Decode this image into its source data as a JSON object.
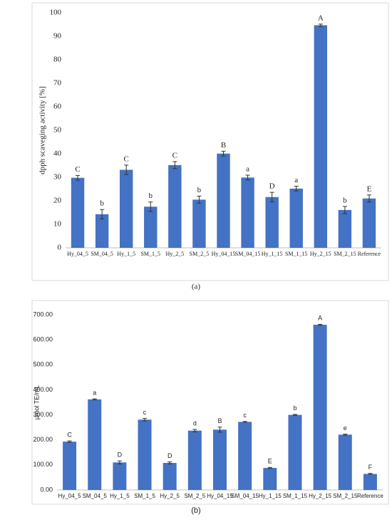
{
  "chart_data": [
    {
      "type": "bar",
      "caption": "(a)",
      "y_label": "dpph scaveging activity [%]",
      "color": "#4472c4",
      "categories": [
        "Hy_04_5",
        "SM_04_5",
        "Hy_1_5",
        "SM_1_5",
        "Hy_2_5",
        "SM_2_5",
        "Hy_04_15",
        "SM_04_15",
        "Hy_1_15",
        "SM_1_15",
        "Hy_2_15",
        "SM_2_15",
        "Reference"
      ],
      "values": [
        29.8,
        14.3,
        33.2,
        17.5,
        35.2,
        20.5,
        40.1,
        29.9,
        21.6,
        25.2,
        94.7,
        16.1,
        21.0
      ],
      "errors": [
        1.0,
        2.0,
        2.0,
        2.0,
        1.5,
        1.5,
        1.0,
        1.0,
        2.0,
        1.0,
        0.5,
        1.5,
        1.5
      ],
      "letters": [
        "C",
        "b",
        "C",
        "b",
        "C",
        "b",
        "B",
        "a",
        "D",
        "a",
        "A",
        "b",
        "E"
      ],
      "ylim": [
        0,
        100
      ],
      "yticks": [
        0,
        10,
        20,
        30,
        40,
        50,
        60,
        70,
        80,
        90,
        100
      ]
    },
    {
      "type": "bar",
      "caption": "(b)",
      "y_label": "µmol TE/mL",
      "color": "#4472c4",
      "categories": [
        "Hy_04_5",
        "SM_04_5",
        "Hy_1_5",
        "SM_1_5",
        "Hy_2_5",
        "SM_2_5",
        "Hy_04_15",
        "SM_04_15",
        "Hy_1_15",
        "SM_1_15",
        "Hy_2_15",
        "SM_2_15",
        "Reference"
      ],
      "values": [
        193,
        362,
        110,
        281,
        108,
        237,
        241,
        272,
        88,
        300,
        660,
        221,
        64
      ],
      "errors": [
        3,
        2,
        6,
        5,
        4,
        5,
        10,
        2,
        2,
        2,
        2,
        2,
        2
      ],
      "letters": [
        "C",
        "a",
        "D",
        "c",
        "D",
        "d",
        "B",
        "c",
        "E",
        "b",
        "A",
        "e",
        "F"
      ],
      "ylim": [
        0,
        700
      ],
      "yticks": [
        {
          "value": 0,
          "label": "0.00"
        },
        {
          "value": 100,
          "label": "100.00"
        },
        {
          "value": 200,
          "label": "200.00"
        },
        {
          "value": 300,
          "label": "300.00"
        },
        {
          "value": 400,
          "label": "400.00"
        },
        {
          "value": 500,
          "label": "500.00"
        },
        {
          "value": 600,
          "label": "600.00"
        },
        {
          "value": 700,
          "label": "700.00"
        }
      ]
    }
  ]
}
